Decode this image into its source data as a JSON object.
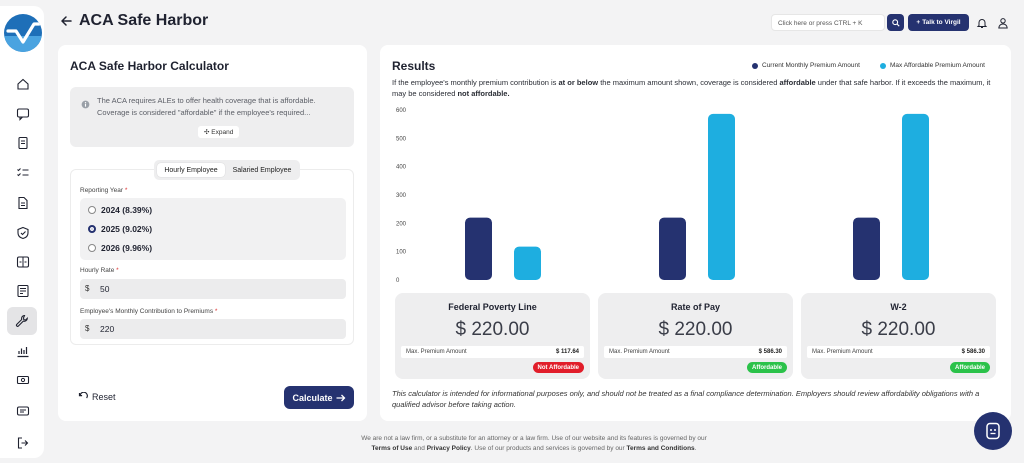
{
  "app": {
    "title": "ACA Safe Harbor"
  },
  "header": {
    "search_placeholder": "Click here or press CTRL + K",
    "talk_button": "Talk to Virgil"
  },
  "sidebar": {
    "items": [
      {
        "icon": "home-icon"
      },
      {
        "icon": "chat-icon"
      },
      {
        "icon": "document-icon"
      },
      {
        "icon": "checklist-icon"
      },
      {
        "icon": "file-icon"
      },
      {
        "icon": "shield-icon"
      },
      {
        "icon": "compare-icon"
      },
      {
        "icon": "form-icon"
      },
      {
        "icon": "wrench-icon",
        "active": true
      },
      {
        "icon": "chart-icon"
      },
      {
        "icon": "money-icon"
      },
      {
        "icon": "message-icon"
      },
      {
        "icon": "logout-icon"
      }
    ]
  },
  "calculator": {
    "title": "ACA Safe Harbor Calculator",
    "info_line1": "The ACA requires ALEs to offer health coverage that is affordable.",
    "info_line2": "Coverage is considered \"affordable\" if the employee's required...",
    "expand_label": "Expand",
    "tabs": [
      "Hourly Employee",
      "Salaried Employee"
    ],
    "reporting_year_label": "Reporting Year",
    "years": [
      "2024 (8.39%)",
      "2025 (9.02%)",
      "2026 (9.96%)"
    ],
    "selected_year_index": 1,
    "hourly_rate_label": "Hourly Rate",
    "hourly_rate_value": "50",
    "contribution_label": "Employee's Monthly Contribution to Premiums",
    "contribution_value": "220",
    "currency_prefix": "$",
    "required_marker": "*",
    "reset_label": "Reset",
    "calculate_label": "Calculate"
  },
  "results": {
    "title": "Results",
    "legend": [
      {
        "name": "Current Monthly Premium Amount",
        "color": "#253270"
      },
      {
        "name": "Max Affordable Premium Amount",
        "color": "#1eaee0"
      }
    ],
    "desc_part1": "If the employee's monthly premium contribution is ",
    "desc_bold1": "at or below",
    "desc_part2": " the maximum amount shown, coverage is considered ",
    "desc_bold2": "affordable",
    "desc_part3": " under that safe harbor. If it exceeds the maximum, it may be considered ",
    "desc_bold3": "not affordable.",
    "cards": [
      {
        "title": "Federal Poverty Line",
        "value": "$ 220.00",
        "max_label": "Max. Premium Amount",
        "max_value": "$ 117.64",
        "status": "Not Affordable",
        "status_color": "#e11d2a"
      },
      {
        "title": "Rate of Pay",
        "value": "$ 220.00",
        "max_label": "Max. Premium Amount",
        "max_value": "$ 586.30",
        "status": "Affordable",
        "status_color": "#2bc24a"
      },
      {
        "title": "W-2",
        "value": "$ 220.00",
        "max_label": "Max. Premium Amount",
        "max_value": "$ 586.30",
        "status": "Affordable",
        "status_color": "#2bc24a"
      }
    ],
    "disclaimer": "This calculator is intended for informational purposes only, and should not be treated as a final compliance determination. Employers should review affordability obligations with a qualified advisor before taking action."
  },
  "chart_data": {
    "type": "bar",
    "categories": [
      "Federal Poverty Line",
      "Rate of Pay",
      "W-2"
    ],
    "series": [
      {
        "name": "Current Monthly Premium Amount",
        "values": [
          220,
          220,
          220
        ],
        "color": "#253270"
      },
      {
        "name": "Max Affordable Premium Amount",
        "values": [
          117.64,
          586.3,
          586.3
        ],
        "color": "#1eaee0"
      }
    ],
    "yticks": [
      0,
      100,
      200,
      300,
      400,
      500,
      600
    ],
    "ylim": [
      0,
      600
    ],
    "grid": false,
    "legend_position": "top-right",
    "show_category_labels": false
  },
  "footer": {
    "line1": "We are not a law firm, or a substitute for an attorney or a law firm. Use of our website and its features is governed by our",
    "terms": "Terms of Use",
    "and": " and ",
    "privacy": "Privacy Policy",
    "line2": ". Use of our products and services is governed by our ",
    "conditions": "Terms and Conditions",
    "end": "."
  }
}
